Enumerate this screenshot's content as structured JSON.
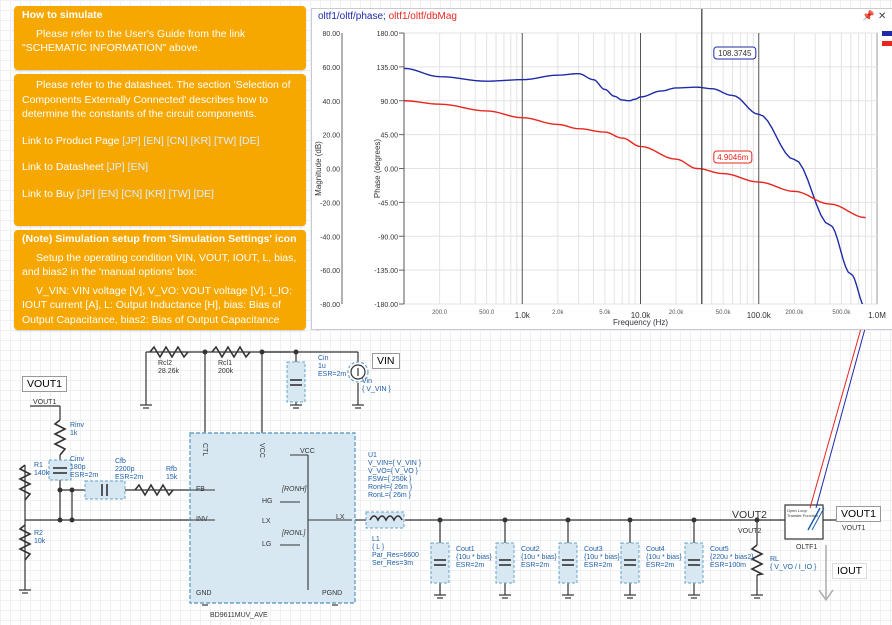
{
  "notes": {
    "how_to_simulate": {
      "title": "How to simulate",
      "text": "Please refer to the User's Guide from the link \"SCHEMATIC INFORMATION\" above."
    },
    "datasheet": {
      "text": "Please refer to the datasheet. The section 'Selection of Components Externally Connected' describes how to determine the constants of the circuit components.",
      "product_page": {
        "label": "Link to Product Page",
        "links": "[JP] [EN] [CN] [KR] [TW] [DE]"
      },
      "datasheet_link": {
        "label": "Link to Datasheet",
        "links": "[JP] [EN]"
      },
      "buy": {
        "label": "Link to Buy",
        "links": "[JP] [EN] [CN] [KR] [TW] [DE]"
      }
    },
    "setup": {
      "title": "(Note) Simulation setup from 'Simulation Settings' icon",
      "text1": "Setup the operating condition VIN, VOUT, IOUT, L, bias, and bias2 in the 'manual options' box:",
      "text2": "V_VIN: VIN voltage [V], V_VO: VOUT voltage [V], I_IO: IOUT current [A], L: Output Inductance [H], bias: Bias of Output Capacitance, bias2: Bias of Output Capacitance"
    }
  },
  "plot": {
    "title_phase": "oltf1/oltf/phase;",
    "title_mag": " oltf1/oltf/dbMag",
    "pin_icon": "pin-icon",
    "close_icon": "close-icon",
    "colors": {
      "phase": "#1f2aa8",
      "mag": "#e8261f"
    },
    "cursor_phase": "108.3745",
    "cursor_mag": "4.9046m"
  },
  "chart_data": {
    "type": "line",
    "xscale": "log",
    "xlabel": "Frequency (Hz)",
    "ylabel_left": "Magnitude (dB)",
    "ylabel_right": "Phase (degrees)",
    "xlim": [
      100,
      1000000
    ],
    "mag_lim": [
      -80,
      80
    ],
    "phase_lim": [
      -180,
      180
    ],
    "mag_ticks": [
      "80.00",
      "60.00",
      "40.00",
      "20.00",
      "0.00",
      "-20.00",
      "-40.00",
      "-60.00",
      "-80.00"
    ],
    "phase_ticks": [
      "180.00",
      "135.00",
      "90.00",
      "45.00",
      "0.00",
      "-45.00",
      "-90.00",
      "-135.00",
      "-180.00"
    ],
    "x_ticks_major": [
      "1.0k",
      "10.0k",
      "100.0k",
      "1.0M"
    ],
    "x_ticks_minor": [
      "200.0",
      "500.0",
      "2.0k",
      "5.0k",
      "20.0k",
      "50.0k",
      "200.0k",
      "500.0k"
    ],
    "cursor_freq": 33000,
    "series": [
      {
        "name": "oltf1/oltf/phase",
        "axis": "phase",
        "x": [
          100,
          200,
          500,
          1000,
          2000,
          3000,
          4000,
          5000,
          6000,
          7000,
          8000,
          9000,
          10000,
          15000,
          20000,
          30000,
          40000,
          60000,
          100000,
          200000,
          400000,
          600000,
          800000
        ],
        "y": [
          133,
          122,
          116,
          118,
          124,
          126,
          118,
          105,
          96,
          91,
          90,
          92,
          95,
          103,
          107,
          108,
          106,
          97,
          72,
          12,
          -75,
          -140,
          -185
        ]
      },
      {
        "name": "oltf1/oltf/dbMag",
        "axis": "mag",
        "x": [
          100,
          200,
          500,
          1000,
          2000,
          3000,
          5000,
          7000,
          10000,
          20000,
          30000,
          50000,
          100000,
          200000,
          400000,
          800000
        ],
        "y": [
          40,
          38,
          34,
          30,
          26,
          23.5,
          21.5,
          18,
          13,
          5.5,
          0,
          -3,
          -8,
          -13.5,
          -21,
          -29
        ]
      }
    ]
  },
  "schematic": {
    "labels": {
      "vout1_tag": "VOUT1",
      "vout1_small": "VOUT1",
      "vin_tag": "VIN",
      "vout2_tag": "VOUT2",
      "vout2_small": "VOUT2",
      "vout1_right": "VOUT1",
      "vout1_right_small": "VOUT1",
      "iout": "IOUT",
      "rcl2": "Rcl2\n28.26k",
      "rcl1": "Rcl1\n200k",
      "cin": "Cin\n1u\nESR=2m",
      "vin_src": "Vin\n{ V_VIN }",
      "rinv": "Rinv\n1k",
      "cinv": "Cinv\n180p\nESR=2m",
      "cfb": "Cfb\n2200p\nESR=2m",
      "rfb": "Rfb\n15k",
      "r1": "R1\n140k",
      "r2": "R2\n10k",
      "u1": "U1\nV_VIN={ V_VIN }\nV_VO={ V_VO }\nFSW={ 250k }\nRonH={ 26m }\nRonL={ 26m }",
      "l1": "L1\n{ L }\nPar_Res=6600\nSer_Res=3m",
      "cout1": "Cout1\n{10u * bias}\nESR=2m",
      "cout2": "Cout2\n{10u * bias}\nESR=2m",
      "cout3": "Cout3\n{10u * bias}\nESR=2m",
      "cout4": "Cout4\n{10u * bias}\nESR=2m",
      "cout5": "Cout5\n{220u * bias2}\nESR=100m",
      "rl": "RL\n{ V_VO / I_IO }",
      "oltf": "OLTF1",
      "oltf_box": "Open Loop\nTransfer Function",
      "ic_name": "BD9611MUV_AVE",
      "pins": {
        "ctl": "CTL",
        "vcc": "VCC",
        "vcc_in": "VCC",
        "fb": "FB",
        "inv": "INV",
        "hg": "HG",
        "lx": "LX",
        "lx_in": "LX",
        "lg": "LG",
        "gnd": "GND",
        "pgnd": "PGND",
        "ronh": "[RONH]",
        "ronl": "[RONL]"
      }
    }
  }
}
